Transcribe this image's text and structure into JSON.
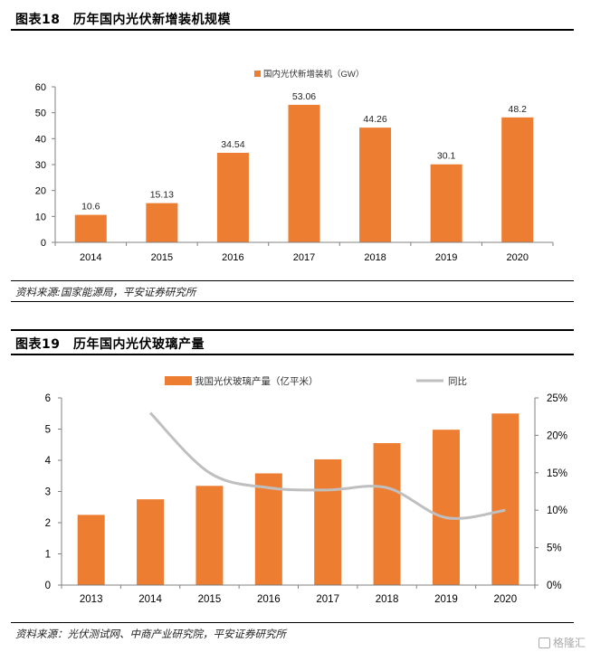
{
  "figure18": {
    "title": "图表18　历年国内光伏新增装机规模",
    "source": "资料来源:国家能源局，平安证券研究所"
  },
  "figure19": {
    "title": "图表19　历年国内光伏玻璃产量",
    "source": "资料来源：光伏测试网、中商产业研究院，平安证券研究所"
  },
  "watermark": "格隆汇",
  "colors": {
    "bar": "#ED7D31",
    "line": "#BFBFBF"
  },
  "chart_data": [
    {
      "type": "bar",
      "categories": [
        "2014",
        "2015",
        "2016",
        "2017",
        "2018",
        "2019",
        "2020"
      ],
      "series": [
        {
          "name": "国内光伏新增装机（GW）",
          "values": [
            10.6,
            15.13,
            34.54,
            53.06,
            44.26,
            30.1,
            48.2
          ]
        }
      ],
      "data_labels": [
        "10.6",
        "15.13",
        "34.54",
        "53.06",
        "44.26",
        "30.1",
        "48.2"
      ],
      "ylim": [
        0,
        60
      ],
      "yticks": [
        0,
        10,
        20,
        30,
        40,
        50,
        60
      ],
      "legend_position": "top-center",
      "grid": false
    },
    {
      "type": "bar",
      "categories": [
        "2013",
        "2014",
        "2015",
        "2016",
        "2017",
        "2018",
        "2019",
        "2020"
      ],
      "series": [
        {
          "name": "我国光伏玻璃产量（亿平米）",
          "type": "bar",
          "axis": "left",
          "values": [
            2.25,
            2.75,
            3.18,
            3.58,
            4.03,
            4.55,
            4.98,
            5.5
          ]
        },
        {
          "name": "同比",
          "type": "line",
          "axis": "right",
          "values": [
            null,
            23.0,
            15.0,
            13.0,
            12.7,
            13.0,
            9.0,
            10.0
          ]
        }
      ],
      "ylim": [
        0,
        6
      ],
      "yticks": [
        "0",
        "1",
        "2",
        "3",
        "4",
        "5",
        "6"
      ],
      "y2lim": [
        0,
        25
      ],
      "y2ticks": [
        "0%",
        "5%",
        "10%",
        "15%",
        "20%",
        "25%"
      ],
      "legend_position": "top-center",
      "grid": false
    }
  ]
}
